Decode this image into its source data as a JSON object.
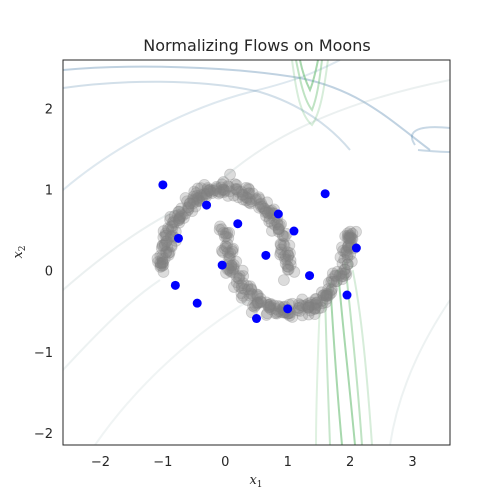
{
  "chart_data": {
    "type": "scatter",
    "title": "Normalizing Flows on Moons",
    "xlabel": "x",
    "xlabel_sub": "1",
    "ylabel": "x",
    "ylabel_sub": "2",
    "xlim": [
      -2.6,
      3.6
    ],
    "ylim": [
      -2.15,
      2.6
    ],
    "xticks": [
      "−2",
      "−1",
      "0",
      "1",
      "2",
      "3"
    ],
    "xtick_values": [
      -2,
      -1,
      0,
      1,
      2,
      3
    ],
    "yticks": [
      "−2",
      "−1",
      "0",
      "1",
      "2"
    ],
    "ytick_values": [
      -2,
      -1,
      0,
      1,
      2
    ],
    "grid": false,
    "colors": {
      "moons": "#808080",
      "samples": "#0000ff",
      "contour_blue": "#4a7fa8",
      "contour_green": "#5fb86a",
      "contour_gray": "#9bb5b5"
    },
    "series": [
      {
        "kind": "moons-data",
        "upper_moon": {
          "center": [
            0,
            0
          ],
          "radius": 1,
          "angle_range_deg": [
            0,
            180
          ],
          "noise": 0.05,
          "count": 220
        },
        "lower_moon": {
          "center": [
            1,
            0.5
          ],
          "radius": 1,
          "angle_range_deg": [
            180,
            360
          ],
          "noise": 0.05,
          "count": 220
        }
      },
      {
        "kind": "samples",
        "points": [
          [
            -1.0,
            1.06
          ],
          [
            -0.3,
            0.81
          ],
          [
            0.2,
            0.58
          ],
          [
            0.85,
            0.7
          ],
          [
            1.1,
            0.49
          ],
          [
            1.6,
            0.95
          ],
          [
            2.1,
            0.28
          ],
          [
            -0.75,
            0.4
          ],
          [
            0.65,
            0.19
          ],
          [
            -0.05,
            0.07
          ],
          [
            1.35,
            -0.06
          ],
          [
            -0.8,
            -0.18
          ],
          [
            -0.45,
            -0.4
          ],
          [
            0.5,
            -0.59
          ],
          [
            1.0,
            -0.47
          ],
          [
            1.95,
            -0.3
          ]
        ]
      }
    ]
  }
}
